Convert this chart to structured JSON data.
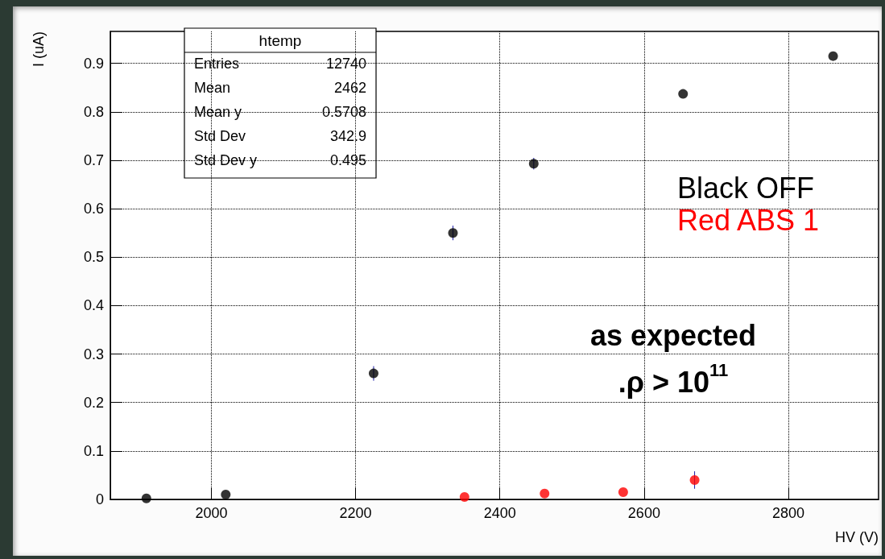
{
  "chart_data": {
    "type": "scatter",
    "xlabel": "HV (V)",
    "ylabel": "I (uA)",
    "xlim": [
      1860,
      2925
    ],
    "xticks": [
      2000,
      2200,
      2400,
      2600,
      2800
    ],
    "ylim": [
      0,
      0.966
    ],
    "yticks": [
      0,
      0.1,
      0.2,
      0.3,
      0.4,
      0.5,
      0.6,
      0.7,
      0.8,
      0.9
    ],
    "grid": true,
    "marker": "circle",
    "legend": "right",
    "series": [
      {
        "name": "Black OFF",
        "color": "#000000",
        "x": [
          1910,
          2020,
          2225,
          2335,
          2447,
          2654,
          2862
        ],
        "values": [
          0.002,
          0.01,
          0.26,
          0.55,
          0.693,
          0.837,
          0.915
        ],
        "errors": [
          null,
          null,
          0.015,
          0.015,
          0.012,
          null,
          null
        ]
      },
      {
        "name": "Red ABS 1",
        "color": "#ff0000",
        "x": [
          2351,
          2462,
          2571,
          2670
        ],
        "values": [
          0.005,
          0.012,
          0.015,
          0.04
        ],
        "errors": [
          null,
          null,
          null,
          0.018
        ]
      }
    ],
    "annotations": [
      "htemp",
      "Entries",
      "12740",
      "Mean",
      "2462",
      "Mean y",
      "0.5708",
      "Std Dev",
      "342.9",
      "Std Dev y",
      "0.495",
      "as expected",
      ".ρ > 10$^{11}$"
    ]
  }
}
